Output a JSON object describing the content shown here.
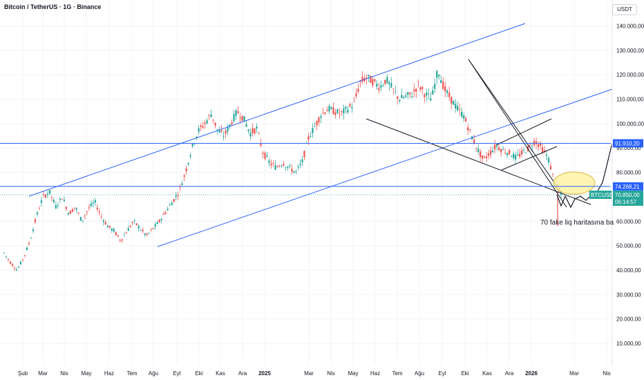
{
  "header": {
    "symbol_title": "Bitcoin / TetherUS · 1G · Binance",
    "currency_label": "USDT"
  },
  "colors": {
    "up": "#26a69a",
    "down": "#ef5350",
    "channel": "#2962ff",
    "trendline": "#131722",
    "axis_text": "#131722",
    "grid": "#f0f3fa",
    "level_line": "#2962ff",
    "highlight_fill": "#fff3a6",
    "highlight_stroke": "#e2b33a"
  },
  "chart_data": {
    "type": "candlestick",
    "y_axis": {
      "min": 0,
      "max": 145000,
      "ticks": [
        {
          "value": 140000,
          "label": "140.000,00"
        },
        {
          "value": 130000,
          "label": "130.000,00"
        },
        {
          "value": 120000,
          "label": "120.000,00"
        },
        {
          "value": 110000,
          "label": "110.000,00"
        },
        {
          "value": 100000,
          "label": "100.000,00"
        },
        {
          "value": 90000,
          "label": "90.000,00"
        },
        {
          "value": 80000,
          "label": "80.000,00"
        },
        {
          "value": 60000,
          "label": "60.000,00"
        },
        {
          "value": 50000,
          "label": "50.000,00"
        },
        {
          "value": 40000,
          "label": "40.000,00"
        },
        {
          "value": 30000,
          "label": "30.000,00"
        },
        {
          "value": 20000,
          "label": "20.000,00"
        },
        {
          "value": 10000,
          "label": "10.000,00"
        }
      ]
    },
    "x_axis": {
      "ticks": [
        {
          "label": "Şub",
          "bold": false
        },
        {
          "label": "Mar",
          "bold": false
        },
        {
          "label": "Nis",
          "bold": false
        },
        {
          "label": "May",
          "bold": false
        },
        {
          "label": "Haz",
          "bold": false
        },
        {
          "label": "Tem",
          "bold": false
        },
        {
          "label": "Ağu",
          "bold": false
        },
        {
          "label": "Eyl",
          "bold": false
        },
        {
          "label": "Eki",
          "bold": false
        },
        {
          "label": "Kas",
          "bold": false
        },
        {
          "label": "Ara",
          "bold": false
        },
        {
          "label": "2025",
          "bold": true
        },
        {
          "label": "Mar",
          "bold": false
        },
        {
          "label": "Nis",
          "bold": false
        },
        {
          "label": "May",
          "bold": false
        },
        {
          "label": "Haz",
          "bold": false
        },
        {
          "label": "Tem",
          "bold": false
        },
        {
          "label": "Ağu",
          "bold": false
        },
        {
          "label": "Eyl",
          "bold": false
        },
        {
          "label": "Eki",
          "bold": false
        },
        {
          "label": "Kas",
          "bold": false
        },
        {
          "label": "Ara",
          "bold": false
        },
        {
          "label": "2026",
          "bold": true
        },
        {
          "label": "Mar",
          "bold": false
        },
        {
          "label": "Nis",
          "bold": false
        }
      ]
    },
    "price_path": [
      [
        0,
        47000
      ],
      [
        1,
        43000
      ],
      [
        2,
        40000
      ],
      [
        3,
        45000
      ],
      [
        4,
        52000
      ],
      [
        5,
        62000
      ],
      [
        6,
        70000
      ],
      [
        7,
        72000
      ],
      [
        8,
        66000
      ],
      [
        9,
        70000
      ],
      [
        10,
        63000
      ],
      [
        11,
        66000
      ],
      [
        12,
        60000
      ],
      [
        13,
        65000
      ],
      [
        14,
        68000
      ],
      [
        15,
        62000
      ],
      [
        16,
        58000
      ],
      [
        17,
        56000
      ],
      [
        18,
        52000
      ],
      [
        19,
        56000
      ],
      [
        20,
        60000
      ],
      [
        21,
        57000
      ],
      [
        22,
        54000
      ],
      [
        23,
        57000
      ],
      [
        24,
        60000
      ],
      [
        25,
        64000
      ],
      [
        26,
        68000
      ],
      [
        27,
        72000
      ],
      [
        28,
        80000
      ],
      [
        29,
        90000
      ],
      [
        30,
        97000
      ],
      [
        31,
        100000
      ],
      [
        32,
        104000
      ],
      [
        33,
        97000
      ],
      [
        34,
        95000
      ],
      [
        35,
        100000
      ],
      [
        36,
        105000
      ],
      [
        37,
        102000
      ],
      [
        38,
        96000
      ],
      [
        39,
        98000
      ],
      [
        40,
        88000
      ],
      [
        41,
        84000
      ],
      [
        42,
        82000
      ],
      [
        43,
        84000
      ],
      [
        44,
        82000
      ],
      [
        45,
        80000
      ],
      [
        46,
        84000
      ],
      [
        47,
        94000
      ],
      [
        48,
        99000
      ],
      [
        49,
        104000
      ],
      [
        50,
        106000
      ],
      [
        51,
        105000
      ],
      [
        52,
        104000
      ],
      [
        53,
        106000
      ],
      [
        54,
        108000
      ],
      [
        55,
        117000
      ],
      [
        56,
        119000
      ],
      [
        57,
        117000
      ],
      [
        58,
        115000
      ],
      [
        59,
        118000
      ],
      [
        60,
        114000
      ],
      [
        61,
        110000
      ],
      [
        62,
        111000
      ],
      [
        63,
        112000
      ],
      [
        64,
        116000
      ],
      [
        65,
        112000
      ],
      [
        66,
        110000
      ],
      [
        67,
        122000
      ],
      [
        68,
        114000
      ],
      [
        69,
        110000
      ],
      [
        70,
        106000
      ],
      [
        71,
        103000
      ],
      [
        72,
        96000
      ],
      [
        73,
        90000
      ],
      [
        74,
        85000
      ],
      [
        75,
        88000
      ],
      [
        76,
        91000
      ],
      [
        77,
        89000
      ],
      [
        78,
        88000
      ],
      [
        79,
        86000
      ],
      [
        80,
        88000
      ],
      [
        81,
        90000
      ],
      [
        82,
        93000
      ],
      [
        83,
        90000
      ],
      [
        84,
        86000
      ],
      [
        85,
        76000
      ],
      [
        86,
        70850
      ]
    ],
    "last_price": 70850,
    "levels": [
      {
        "value": 91910.2,
        "label": "91.910,20",
        "color": "#2962ff"
      },
      {
        "value": 74268.21,
        "label": "74.268,21",
        "color": "#2962ff"
      }
    ],
    "symbol_tag": {
      "label": "BTCUSDT",
      "price_label": "70.850,00",
      "countdown": "06:14:57"
    },
    "annotation": "70 fake liq haritasına ba"
  }
}
